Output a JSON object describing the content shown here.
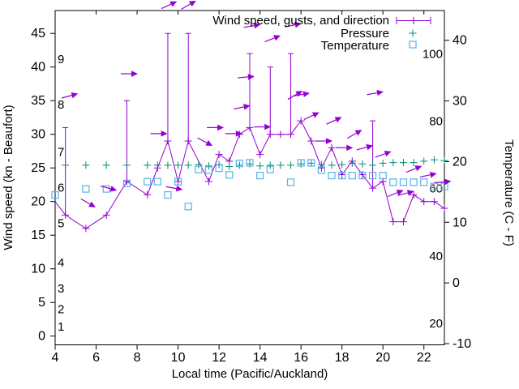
{
  "colors": {
    "wind": "#9400d3",
    "pressure": "#008c6e",
    "temperature": "#58b2e8",
    "axis": "#000000",
    "background": "#ffffff"
  },
  "chart_data": {
    "type": "line",
    "xlabel": "Local time (Pacific/Auckland)",
    "ylabel_left": "Wind speed (kn - Beaufort)",
    "ylabel_right": "Temperature (C - F)",
    "x_range": [
      4,
      23
    ],
    "y_left_range": [
      -1.3,
      48.4
    ],
    "y_right_range_c": [
      -10.2,
      44.9
    ],
    "x_ticks": [
      4,
      6,
      8,
      10,
      12,
      14,
      16,
      18,
      20,
      22
    ],
    "y_left_ticks": [
      0,
      5,
      10,
      15,
      20,
      25,
      30,
      35,
      40,
      45
    ],
    "y_right_ticks_c": [
      -10,
      0,
      10,
      20,
      30,
      40
    ],
    "beaufort_scale": [
      {
        "label": "1",
        "kn": 1.4
      },
      {
        "label": "2",
        "kn": 4.0
      },
      {
        "label": "3",
        "kn": 7.1
      },
      {
        "label": "4",
        "kn": 10.9
      },
      {
        "label": "5",
        "kn": 16.8
      },
      {
        "label": "6",
        "kn": 22.1
      },
      {
        "label": "7",
        "kn": 27.4
      },
      {
        "label": "8",
        "kn": 34.4
      },
      {
        "label": "9",
        "kn": 41.2
      }
    ],
    "fahrenheit_labels": [
      {
        "label": "20",
        "f": 20
      },
      {
        "label": "40",
        "f": 40
      },
      {
        "label": "60",
        "f": 60
      },
      {
        "label": "80",
        "f": 80
      },
      {
        "label": "100",
        "f": 100
      }
    ],
    "legend": [
      {
        "label": "Wind speed, gusts, and direction",
        "series": "wind",
        "marker": "errorbar"
      },
      {
        "label": "Pressure",
        "series": "pressure",
        "marker": "plus"
      },
      {
        "label": "Temperature",
        "series": "temperature",
        "marker": "square"
      }
    ],
    "series": {
      "wind_speed_kn": {
        "points": [
          [
            4,
            20
          ],
          [
            4.5,
            18
          ],
          [
            5.5,
            16
          ],
          [
            6.5,
            18
          ],
          [
            7.5,
            23
          ],
          [
            8.5,
            21
          ],
          [
            9,
            25
          ],
          [
            9.5,
            29
          ],
          [
            10,
            23
          ],
          [
            10.5,
            29
          ],
          [
            11.5,
            23
          ],
          [
            12,
            27
          ],
          [
            12.5,
            26
          ],
          [
            13,
            30
          ],
          [
            13.5,
            31
          ],
          [
            14,
            27
          ],
          [
            14.5,
            30
          ],
          [
            15,
            30
          ],
          [
            15.5,
            30
          ],
          [
            16,
            32
          ],
          [
            16.5,
            29
          ],
          [
            17,
            25
          ],
          [
            17.5,
            28
          ],
          [
            18,
            24
          ],
          [
            18.5,
            26
          ],
          [
            19,
            24
          ],
          [
            19.5,
            22
          ],
          [
            20,
            23
          ],
          [
            20.5,
            17
          ],
          [
            21,
            17
          ],
          [
            21.5,
            21
          ],
          [
            22,
            20
          ],
          [
            22.5,
            20
          ],
          [
            23,
            19
          ]
        ]
      },
      "gusts_kn": {
        "bars": [
          [
            4.5,
            18,
            31
          ],
          [
            7.5,
            23,
            35
          ],
          [
            9.5,
            29,
            45
          ],
          [
            10.5,
            29,
            45
          ],
          [
            13.5,
            31,
            42
          ],
          [
            14.5,
            30,
            40
          ],
          [
            15.5,
            30,
            42
          ],
          [
            19.5,
            22,
            32
          ]
        ]
      },
      "pressure": {
        "units": "left-axis plot units (no pressure scale shown)",
        "points": [
          [
            4.5,
            25.4
          ],
          [
            5.5,
            25.4
          ],
          [
            6.5,
            25.4
          ],
          [
            7.5,
            25.4
          ],
          [
            8.5,
            25.4
          ],
          [
            9,
            25.4
          ],
          [
            9.5,
            25.4
          ],
          [
            10,
            25.4
          ],
          [
            10.5,
            25.4
          ],
          [
            11,
            25.5
          ],
          [
            11.5,
            25.3
          ],
          [
            12,
            25.5
          ],
          [
            12.5,
            25.2
          ],
          [
            13,
            25.4
          ],
          [
            13.5,
            25.6
          ],
          [
            14,
            25.3
          ],
          [
            14.5,
            25.4
          ],
          [
            15,
            25.4
          ],
          [
            15.5,
            25.4
          ],
          [
            16,
            25.6
          ],
          [
            16.5,
            25.7
          ],
          [
            17,
            25.5
          ],
          [
            17.5,
            25.4
          ],
          [
            18,
            25.5
          ],
          [
            18.5,
            25.7
          ],
          [
            19,
            25.6
          ],
          [
            19.5,
            25.4
          ],
          [
            20,
            25.7
          ],
          [
            20.5,
            25.8
          ],
          [
            21,
            25.8
          ],
          [
            21.5,
            25.8
          ],
          [
            22,
            26.0
          ],
          [
            22.5,
            26.2
          ],
          [
            23,
            26.1
          ]
        ]
      },
      "temperature_c": {
        "points": [
          [
            4,
            14.5
          ],
          [
            5.5,
            15.5
          ],
          [
            6.5,
            15.5
          ],
          [
            7.5,
            16.4
          ],
          [
            8.5,
            16.7
          ],
          [
            9,
            16.7
          ],
          [
            9.5,
            14.5
          ],
          [
            10,
            16.7
          ],
          [
            10.5,
            12.6
          ],
          [
            11,
            18.7
          ],
          [
            11.5,
            18.6
          ],
          [
            12,
            18.9
          ],
          [
            12.5,
            17.8
          ],
          [
            13,
            19.7
          ],
          [
            13.5,
            19.8
          ],
          [
            14,
            17.7
          ],
          [
            14.5,
            18.7
          ],
          [
            15.5,
            16.6
          ],
          [
            16,
            19.8
          ],
          [
            16.5,
            19.8
          ],
          [
            17,
            18.6
          ],
          [
            17.5,
            17.7
          ],
          [
            18,
            17.7
          ],
          [
            18.5,
            17.7
          ],
          [
            19,
            17.7
          ],
          [
            19.5,
            17.7
          ],
          [
            20,
            17.7
          ],
          [
            20.5,
            16.6
          ],
          [
            21,
            16.6
          ],
          [
            21.5,
            16.6
          ],
          [
            22,
            16.6
          ],
          [
            22.5,
            15.9
          ],
          [
            23,
            15.9
          ]
        ]
      },
      "direction_arrows": {
        "comment_units": "[time, level in left-axis units, rotation deg (0 = east, negative = tilted up)]",
        "points": [
          [
            4.7,
            35.7,
            -15
          ],
          [
            5.6,
            19.8,
            30
          ],
          [
            6.6,
            22.0,
            15
          ],
          [
            7.6,
            39.0,
            0
          ],
          [
            9.05,
            30.1,
            0
          ],
          [
            9.8,
            22.0,
            10
          ],
          [
            9.55,
            49.2,
            -25
          ],
          [
            10.5,
            49.2,
            -30
          ],
          [
            11.3,
            28.9,
            28
          ],
          [
            11.8,
            31.0,
            0
          ],
          [
            12.7,
            30.1,
            0
          ],
          [
            13.1,
            34.0,
            -12
          ],
          [
            13.3,
            38.5,
            -5
          ],
          [
            13.6,
            46.1,
            -10
          ],
          [
            14.1,
            31.1,
            0
          ],
          [
            14.6,
            44.2,
            -22
          ],
          [
            15.6,
            46.2,
            -12
          ],
          [
            15.7,
            35.8,
            -30
          ],
          [
            16.0,
            35.9,
            -10
          ],
          [
            16.5,
            32.7,
            -25
          ],
          [
            17.1,
            29.0,
            0
          ],
          [
            17.6,
            32.0,
            -25
          ],
          [
            18.1,
            28.0,
            0
          ],
          [
            18.6,
            30.0,
            -30
          ],
          [
            19.1,
            28.0,
            -15
          ],
          [
            19.6,
            36.1,
            -10
          ],
          [
            20.0,
            27.0,
            -20
          ],
          [
            20.6,
            21.2,
            -22
          ],
          [
            21.1,
            21.2,
            -15
          ],
          [
            21.5,
            24.8,
            -22
          ],
          [
            22.2,
            23.9,
            -12
          ],
          [
            22.9,
            22.9,
            -5
          ]
        ]
      }
    }
  }
}
